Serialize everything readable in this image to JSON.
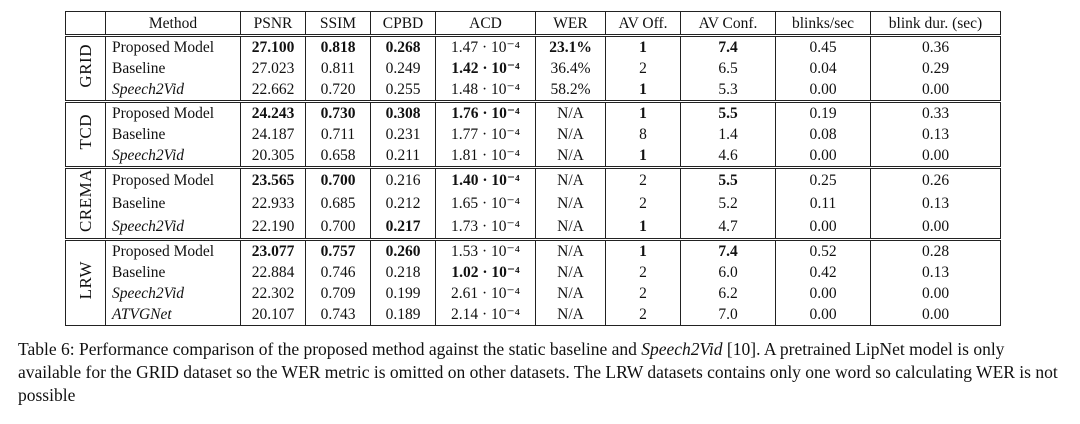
{
  "table": {
    "header": [
      "Method",
      "PSNR",
      "SSIM",
      "CPBD",
      "ACD",
      "WER",
      "AV Off.",
      "AV Conf.",
      "blinks/sec",
      "blink dur. (sec)"
    ],
    "groups": [
      {
        "name": "GRID",
        "rows": [
          {
            "cells": [
              "Proposed Model",
              "27.100",
              "0.818",
              "0.268",
              "1.47 · 10⁻⁴",
              "23.1%",
              "1",
              "7.4",
              "0.45",
              "0.36"
            ],
            "bold": [
              1,
              2,
              3,
              5,
              6,
              7
            ],
            "italic": false
          },
          {
            "cells": [
              "Baseline",
              "27.023",
              "0.811",
              "0.249",
              "1.42 · 10⁻⁴",
              "36.4%",
              "2",
              "6.5",
              "0.04",
              "0.29"
            ],
            "bold": [
              4
            ],
            "italic": false
          },
          {
            "cells": [
              "Speech2Vid",
              "22.662",
              "0.720",
              "0.255",
              "1.48 · 10⁻⁴",
              "58.2%",
              "1",
              "5.3",
              "0.00",
              "0.00"
            ],
            "bold": [
              6
            ],
            "italic": true
          }
        ]
      },
      {
        "name": "TCD",
        "rows": [
          {
            "cells": [
              "Proposed Model",
              "24.243",
              "0.730",
              "0.308",
              "1.76 · 10⁻⁴",
              "N/A",
              "1",
              "5.5",
              "0.19",
              "0.33"
            ],
            "bold": [
              1,
              2,
              3,
              4,
              6,
              7
            ],
            "italic": false
          },
          {
            "cells": [
              "Baseline",
              "24.187",
              "0.711",
              "0.231",
              "1.77 · 10⁻⁴",
              "N/A",
              "8",
              "1.4",
              "0.08",
              "0.13"
            ],
            "bold": [],
            "italic": false
          },
          {
            "cells": [
              "Speech2Vid",
              "20.305",
              "0.658",
              "0.211",
              "1.81 · 10⁻⁴",
              "N/A",
              "1",
              "4.6",
              "0.00",
              "0.00"
            ],
            "bold": [
              6
            ],
            "italic": true
          }
        ]
      },
      {
        "name": "CREMA",
        "rows": [
          {
            "cells": [
              "Proposed Model",
              "23.565",
              "0.700",
              "0.216",
              "1.40 · 10⁻⁴",
              "N/A",
              "2",
              "5.5",
              "0.25",
              "0.26"
            ],
            "bold": [
              1,
              2,
              4,
              7
            ],
            "italic": false
          },
          {
            "cells": [
              "Baseline",
              "22.933",
              "0.685",
              "0.212",
              "1.65 · 10⁻⁴",
              "N/A",
              "2",
              "5.2",
              "0.11",
              "0.13"
            ],
            "bold": [],
            "italic": false
          },
          {
            "cells": [
              "Speech2Vid",
              "22.190",
              "0.700",
              "0.217",
              "1.73 · 10⁻⁴",
              "N/A",
              "1",
              "4.7",
              "0.00",
              "0.00"
            ],
            "bold": [
              3,
              6
            ],
            "italic": true
          }
        ]
      },
      {
        "name": "LRW",
        "rows": [
          {
            "cells": [
              "Proposed Model",
              "23.077",
              "0.757",
              "0.260",
              "1.53 · 10⁻⁴",
              "N/A",
              "1",
              "7.4",
              "0.52",
              "0.28"
            ],
            "bold": [
              1,
              2,
              3,
              6,
              7
            ],
            "italic": false
          },
          {
            "cells": [
              "Baseline",
              "22.884",
              "0.746",
              "0.218",
              "1.02 · 10⁻⁴",
              "N/A",
              "2",
              "6.0",
              "0.42",
              "0.13"
            ],
            "bold": [
              4
            ],
            "italic": false
          },
          {
            "cells": [
              "Speech2Vid",
              "22.302",
              "0.709",
              "0.199",
              "2.61 · 10⁻⁴",
              "N/A",
              "2",
              "6.2",
              "0.00",
              "0.00"
            ],
            "bold": [],
            "italic": true
          },
          {
            "cells": [
              "ATVGNet",
              "20.107",
              "0.743",
              "0.189",
              "2.14 · 10⁻⁴",
              "N/A",
              "2",
              "7.0",
              "0.00",
              "0.00"
            ],
            "bold": [],
            "italic": true
          }
        ]
      }
    ]
  },
  "caption": [
    "Table 6: Performance comparison of the proposed method against the static baseline and ",
    "Speech2Vid",
    " [10]. A pretrained LipNet model is only available for the GRID dataset so the WER metric is omitted on other datasets. The LRW datasets contains only one word so calculating WER is not possible"
  ]
}
